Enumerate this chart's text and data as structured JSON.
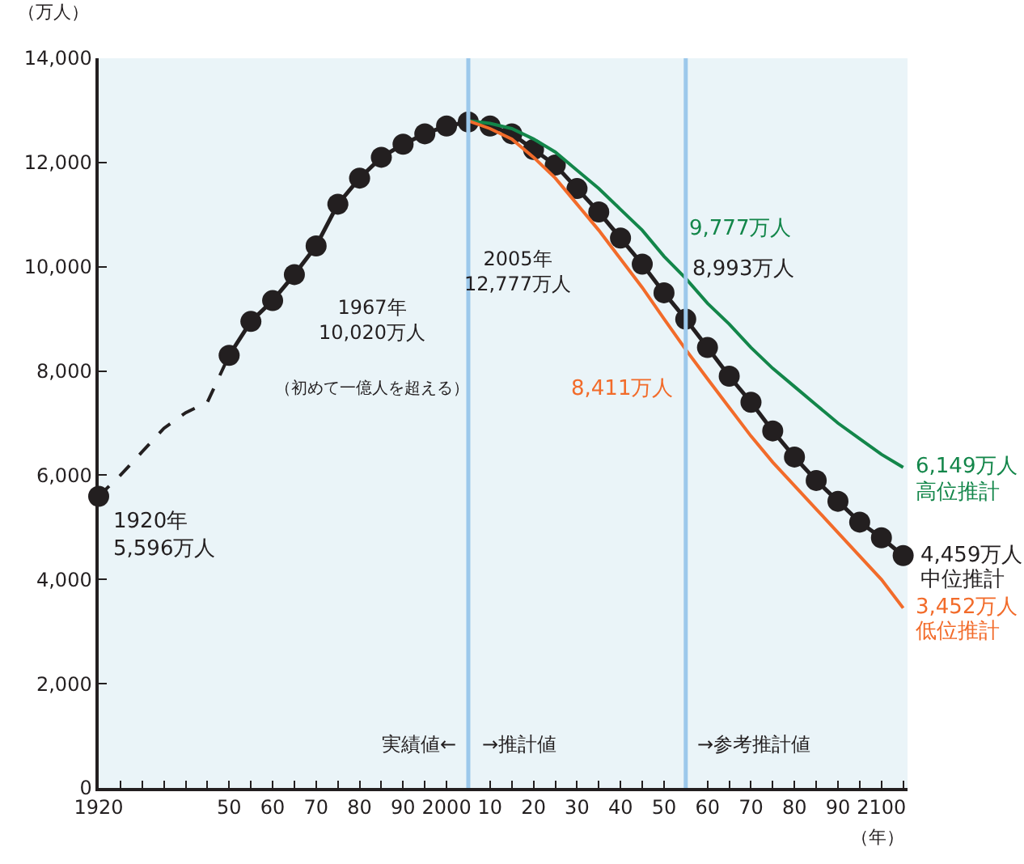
{
  "chart_data": {
    "type": "line",
    "xlabel": "（年）",
    "ylabel": "（万人）",
    "xlim": [
      1920,
      2106
    ],
    "ylim": [
      0,
      14000
    ],
    "xticks": [
      1920,
      {
        "value": 1925,
        "label": null
      },
      {
        "value": 1930,
        "label": null
      },
      {
        "value": 1935,
        "label": null
      },
      {
        "value": 1940,
        "label": null
      },
      {
        "value": 1945,
        "label": null
      },
      {
        "value": 1950,
        "label": "50"
      },
      {
        "value": 1955,
        "label": null
      },
      {
        "value": 1960,
        "label": "60"
      },
      {
        "value": 1965,
        "label": null
      },
      {
        "value": 1970,
        "label": "70"
      },
      {
        "value": 1975,
        "label": null
      },
      {
        "value": 1980,
        "label": "80"
      },
      {
        "value": 1985,
        "label": null
      },
      {
        "value": 1990,
        "label": "90"
      },
      {
        "value": 1995,
        "label": null
      },
      2000,
      {
        "value": 2005,
        "label": null
      },
      {
        "value": 2010,
        "label": "10"
      },
      {
        "value": 2015,
        "label": null
      },
      {
        "value": 2020,
        "label": "20"
      },
      {
        "value": 2025,
        "label": null
      },
      {
        "value": 2030,
        "label": "30"
      },
      {
        "value": 2035,
        "label": null
      },
      {
        "value": 2040,
        "label": "40"
      },
      {
        "value": 2045,
        "label": null
      },
      {
        "value": 2050,
        "label": "50"
      },
      {
        "value": 2055,
        "label": null
      },
      {
        "value": 2060,
        "label": "60"
      },
      {
        "value": 2065,
        "label": null
      },
      {
        "value": 2070,
        "label": "70"
      },
      {
        "value": 2075,
        "label": null
      },
      {
        "value": 2080,
        "label": "80"
      },
      {
        "value": 2085,
        "label": null
      },
      {
        "value": 2090,
        "label": "90"
      },
      {
        "value": 2095,
        "label": null
      },
      2100,
      {
        "value": 2105,
        "label": null
      }
    ],
    "yticks": [
      0,
      {
        "value": 2000,
        "label": "2,000"
      },
      {
        "value": 4000,
        "label": "4,000"
      },
      {
        "value": 6000,
        "label": "6,000"
      },
      {
        "value": 8000,
        "label": "8,000"
      },
      {
        "value": 10000,
        "label": "10,000"
      },
      {
        "value": 12000,
        "label": "12,000"
      },
      {
        "value": 14000,
        "label": "14,000"
      }
    ],
    "grid": false,
    "legend": false,
    "series": [
      {
        "color": "#231f20",
        "line_style": "dashed",
        "marker": "none",
        "x": [
          1920,
          1925,
          1930,
          1935,
          1940,
          1945,
          1950
        ],
        "values": [
          5596,
          6000,
          6450,
          6900,
          7200,
          7400,
          8300
        ]
      },
      {
        "type": "scatter",
        "color": "#231f20",
        "marker": "circle",
        "x": [
          1920
        ],
        "values": [
          5596
        ],
        "value_labels": [
          "1920年\n5,596万人"
        ]
      },
      {
        "name": "中位推計",
        "color": "#231f20",
        "line_style": "solid",
        "marker": "circle",
        "x": [
          1950,
          1955,
          1960,
          1965,
          1970,
          1975,
          1980,
          1985,
          1990,
          1995,
          2000,
          2005,
          2010,
          2015,
          2020,
          2025,
          2030,
          2035,
          2040,
          2045,
          2050,
          2055,
          2060,
          2065,
          2070,
          2075,
          2080,
          2085,
          2090,
          2095,
          2100,
          2105
        ],
        "values": [
          8300,
          8950,
          9350,
          9850,
          10400,
          11200,
          11700,
          12100,
          12350,
          12550,
          12700,
          12777,
          12700,
          12550,
          12250,
          11950,
          11500,
          11050,
          10550,
          10050,
          9500,
          8993,
          8450,
          7900,
          7400,
          6850,
          6350,
          5900,
          5500,
          5100,
          4800,
          4459
        ],
        "value_labels": [
          null,
          null,
          null,
          null,
          null,
          null,
          null,
          null,
          null,
          null,
          null,
          null,
          null,
          null,
          null,
          null,
          null,
          null,
          null,
          null,
          null,
          "8,993万人",
          null,
          null,
          null,
          null,
          null,
          null,
          null,
          null,
          null,
          "4,459万人"
        ]
      },
      {
        "name": "高位推計",
        "color": "#13864a",
        "line_style": "solid",
        "marker": "none",
        "x": [
          2005,
          2010,
          2015,
          2020,
          2025,
          2030,
          2035,
          2040,
          2045,
          2050,
          2055,
          2060,
          2065,
          2070,
          2075,
          2080,
          2085,
          2090,
          2095,
          2100,
          2105
        ],
        "values": [
          12800,
          12750,
          12650,
          12450,
          12200,
          11850,
          11500,
          11100,
          10700,
          10200,
          9777,
          9300,
          8900,
          8450,
          8050,
          7700,
          7350,
          7000,
          6700,
          6400,
          6149
        ],
        "value_labels": [
          null,
          null,
          null,
          null,
          null,
          null,
          null,
          null,
          null,
          null,
          "9,777万人",
          null,
          null,
          null,
          null,
          null,
          null,
          null,
          null,
          null,
          "6,149万人"
        ]
      },
      {
        "name": "低位推計",
        "color": "#f26b2a",
        "line_style": "solid",
        "marker": "none",
        "x": [
          2005,
          2010,
          2015,
          2020,
          2025,
          2030,
          2035,
          2040,
          2045,
          2050,
          2055,
          2060,
          2065,
          2070,
          2075,
          2080,
          2085,
          2090,
          2095,
          2100,
          2105
        ],
        "values": [
          12800,
          12650,
          12450,
          12100,
          11700,
          11200,
          10700,
          10150,
          9600,
          9000,
          8411,
          7850,
          7300,
          6750,
          6250,
          5800,
          5350,
          4900,
          4450,
          4000,
          3452
        ],
        "value_labels": [
          null,
          null,
          null,
          null,
          null,
          null,
          null,
          null,
          null,
          null,
          "8,411万人",
          null,
          null,
          null,
          null,
          null,
          null,
          null,
          null,
          null,
          "3,452万人"
        ]
      }
    ],
    "ref_lines": [
      {
        "axis": "x",
        "value": 2005,
        "color": "#9cc8eb"
      },
      {
        "axis": "x",
        "value": 2055,
        "color": "#9cc8eb"
      }
    ],
    "annotations": [
      "1967年\n10,020万人",
      "実績値←",
      "→推計値",
      "→参考推計値",
      "2005年\n12,777万人",
      "（初めて一億人を超える）"
    ]
  }
}
